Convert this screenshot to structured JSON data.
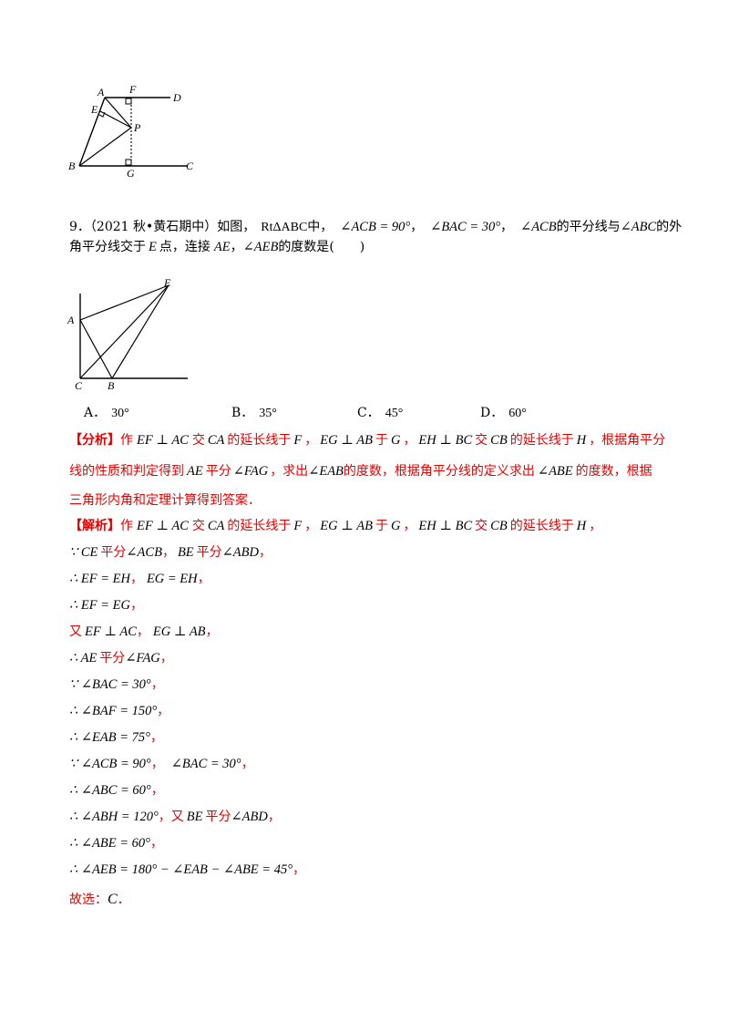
{
  "figure1": {
    "labels": {
      "A": "A",
      "F": "F",
      "D": "D",
      "E": "E",
      "P": "P",
      "B": "B",
      "G": "G",
      "C": "C"
    }
  },
  "question": {
    "number": "9．",
    "source": "（2021 秋•黄石期中）",
    "line1_a": "如图，",
    "triangle": "RtΔABC",
    "line1_b": "中，",
    "cond1": "∠ACB = 90°",
    "sep1": "，",
    "cond2": "∠BAC = 30°",
    "sep2": "，",
    "cond3": "∠ACB",
    "line1_c": "的平分线与",
    "cond4": "∠ABC",
    "line1_d": "的外",
    "line2_a": "角平分线交于",
    "pointE": "E",
    "line2_b": "点，连接",
    "segAE": "AE",
    "sep3": "，",
    "angleAEB": "∠AEB",
    "line2_c": "的度数是",
    "blank": "(　　)"
  },
  "figure2": {
    "labels": {
      "A": "A",
      "E": "E",
      "C": "C",
      "B": "B"
    }
  },
  "options": [
    {
      "letter": "A．",
      "value": "30°"
    },
    {
      "letter": "B．",
      "value": "35°"
    },
    {
      "letter": "C．",
      "value": "45°"
    },
    {
      "letter": "D．",
      "value": "60°"
    }
  ],
  "analysis": {
    "tag": "【分析】",
    "l1": [
      "作",
      "EF ⊥ AC",
      "交",
      "CA",
      "的延长线于",
      "F",
      "，",
      "EG ⊥ AB",
      "于",
      "G",
      "，",
      "EH ⊥ BC",
      "交",
      "CB",
      "的延长线于",
      "H",
      "，根据角平分"
    ],
    "l2": [
      "线的性质和判定得到",
      "AE",
      "平分",
      "∠FAG",
      "，求出",
      "∠EAB",
      "的度数，根据角平分线的定义求出",
      "∠ABE",
      "的度数，根据"
    ],
    "l3": "三角形内角和定理计算得到答案．"
  },
  "solution": {
    "tag": "【解析】",
    "l1": [
      "作",
      "EF ⊥ AC",
      "交",
      "CA",
      "的延长线于",
      "F",
      "，",
      "EG ⊥ AB",
      "于",
      "G",
      "，",
      "EH ⊥ BC",
      "交",
      "CB",
      "的延长线于",
      "H",
      "，"
    ],
    "steps": [
      [
        "∵ CE",
        "平分",
        "∠ACB",
        "，",
        "BE",
        "平分",
        "∠ABD",
        "，"
      ],
      [
        "∴ EF = EH",
        "，",
        "EG = EH",
        "，"
      ],
      [
        "∴ EF = EG",
        "，"
      ],
      [
        "又",
        "EF ⊥ AC",
        "，",
        "EG ⊥ AB",
        "，"
      ],
      [
        "∴ AE",
        "平分",
        "∠FAG",
        "，"
      ],
      [
        "∵ ∠BAC = 30°",
        "，"
      ],
      [
        "∴ ∠BAF = 150°",
        "，"
      ],
      [
        "∴ ∠EAB = 75°",
        "，"
      ],
      [
        "∵ ∠ACB = 90°",
        "，",
        "∠BAC = 30°",
        "，"
      ],
      [
        "∴ ∠ABC = 60°",
        "，"
      ],
      [
        "∴ ∠ABH = 120°",
        "，又",
        "BE",
        "平分",
        "∠ABD",
        "，"
      ],
      [
        "∴ ∠ABE = 60°",
        "，"
      ],
      [
        "∴ ∠AEB = 180° − ∠EAB − ∠ABE = 45°",
        "，"
      ]
    ],
    "answer_a": "故选：",
    "answer_b": "C",
    "answer_c": "．"
  }
}
